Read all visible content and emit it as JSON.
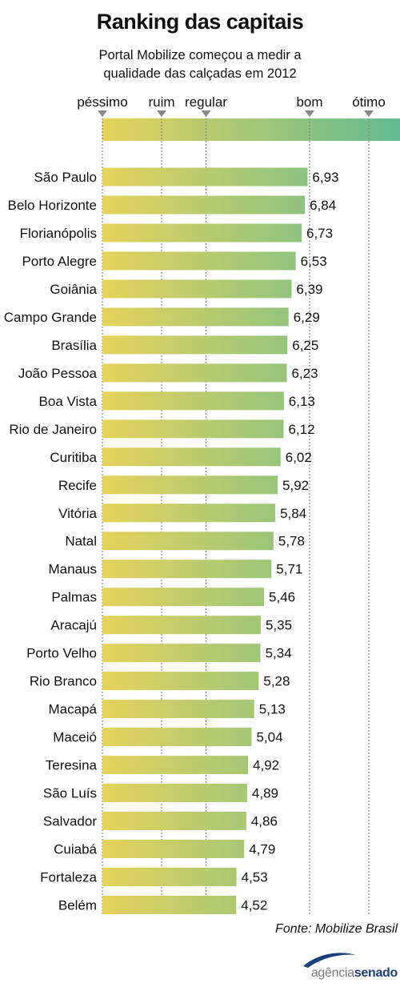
{
  "title": "Ranking das capitais",
  "subtitle_line1": "Portal Mobilize começou a medir a",
  "subtitle_line2": "qualidade das calçadas em 2012",
  "source": "Fonte: Mobilize Brasil",
  "logo": {
    "part1": "agência",
    "part2": "senado"
  },
  "colors": {
    "bar_start": "#e6d35c",
    "bar_end": "#62bb91",
    "tick": "#888888"
  },
  "chart_data": {
    "type": "bar",
    "orientation": "horizontal",
    "scale": [
      {
        "label": "péssimo",
        "value": 0
      },
      {
        "label": "ruim",
        "value": 2
      },
      {
        "label": "regular",
        "value": 3.5
      },
      {
        "label": "bom",
        "value": 7
      },
      {
        "label": "ótimo",
        "value": 9
      }
    ],
    "categories": [
      "São Paulo",
      "Belo Horizonte",
      "Florianópolis",
      "Porto Alegre",
      "Goiânia",
      "Campo Grande",
      "Brasília",
      "João Pessoa",
      "Boa Vista",
      "Rio de Janeiro",
      "Curitiba",
      "Recife",
      "Vitória",
      "Natal",
      "Manaus",
      "Palmas",
      "Aracajú",
      "Porto Velho",
      "Rio Branco",
      "Macapá",
      "Maceió",
      "Teresina",
      "São Luís",
      "Salvador",
      "Cuiabá",
      "Fortaleza",
      "Belém"
    ],
    "values": [
      6.93,
      6.84,
      6.73,
      6.53,
      6.39,
      6.29,
      6.25,
      6.23,
      6.13,
      6.12,
      6.02,
      5.92,
      5.84,
      5.78,
      5.71,
      5.46,
      5.35,
      5.34,
      5.28,
      5.13,
      5.04,
      4.92,
      4.89,
      4.86,
      4.79,
      4.53,
      4.52
    ],
    "value_labels": [
      "6,93",
      "6,84",
      "6,73",
      "6,53",
      "6,39",
      "6,29",
      "6,25",
      "6,23",
      "6,13",
      "6,12",
      "6,02",
      "5,92",
      "5,84",
      "5,78",
      "5,71",
      "5,46",
      "5,35",
      "5,34",
      "5,28",
      "5,13",
      "5,04",
      "4,92",
      "4,89",
      "4,86",
      "4,79",
      "4,53",
      "4,52"
    ]
  }
}
